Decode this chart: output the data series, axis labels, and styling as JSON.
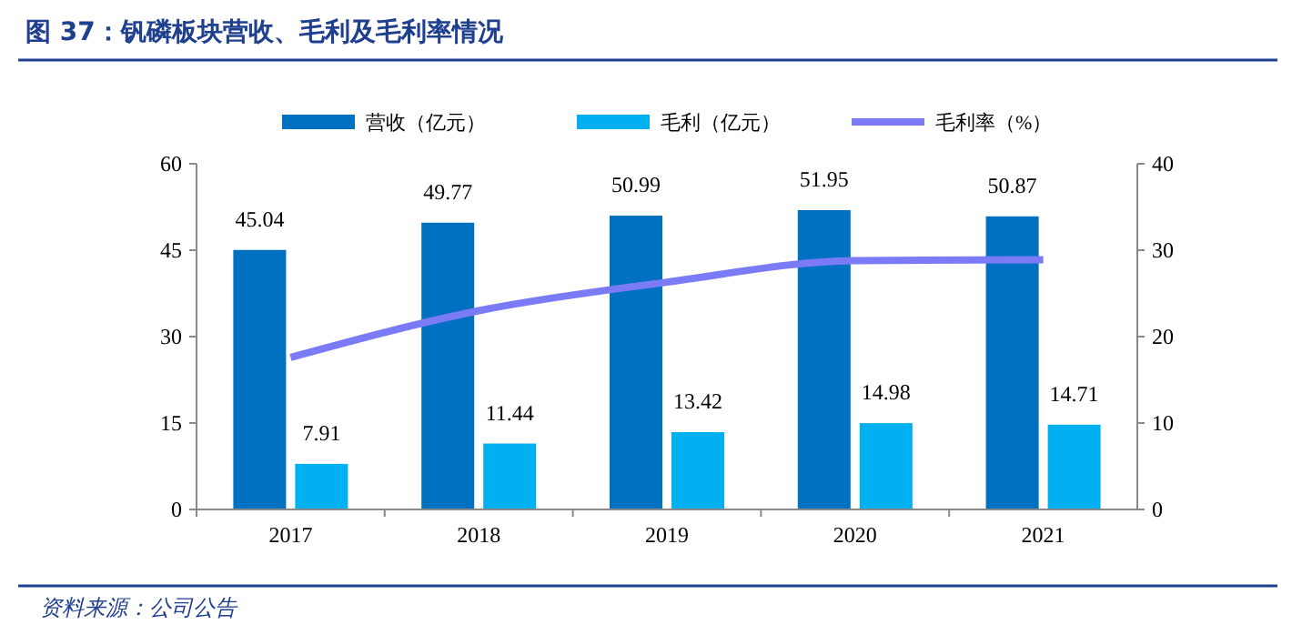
{
  "chart_data": {
    "type": "bar",
    "title": "图 37：钒磷板块营收、毛利及毛利率情况",
    "annotations": [
      "资料来源：公司公告"
    ],
    "categories": [
      "2017",
      "2018",
      "2019",
      "2020",
      "2021"
    ],
    "series": [
      {
        "name": "营收（亿元）",
        "color": "#0070c0",
        "values": [
          45.04,
          49.77,
          50.99,
          51.95,
          50.87
        ],
        "value_labels": [
          "45.04",
          "49.77",
          "50.99",
          "51.95",
          "50.87"
        ]
      },
      {
        "name": "毛利（亿元）",
        "color": "#00b0f0",
        "values": [
          7.91,
          11.44,
          13.42,
          14.98,
          14.71
        ],
        "value_labels": [
          "7.91",
          "11.44",
          "13.42",
          "14.98",
          "14.71"
        ]
      },
      {
        "name": "毛利率（%）",
        "type": "line",
        "axis": "y2",
        "color": "#7b7bf7",
        "values": [
          17.6,
          23,
          26.3,
          28.8,
          28.9
        ]
      }
    ],
    "ylim": [
      0,
      60
    ],
    "yticks": [
      0,
      15,
      30,
      45,
      60
    ],
    "y2lim": [
      0,
      40
    ],
    "y2ticks": [
      0,
      10,
      20,
      30,
      40
    ],
    "legend": "top",
    "grid": false,
    "marker": "none",
    "line_style": "solid"
  }
}
